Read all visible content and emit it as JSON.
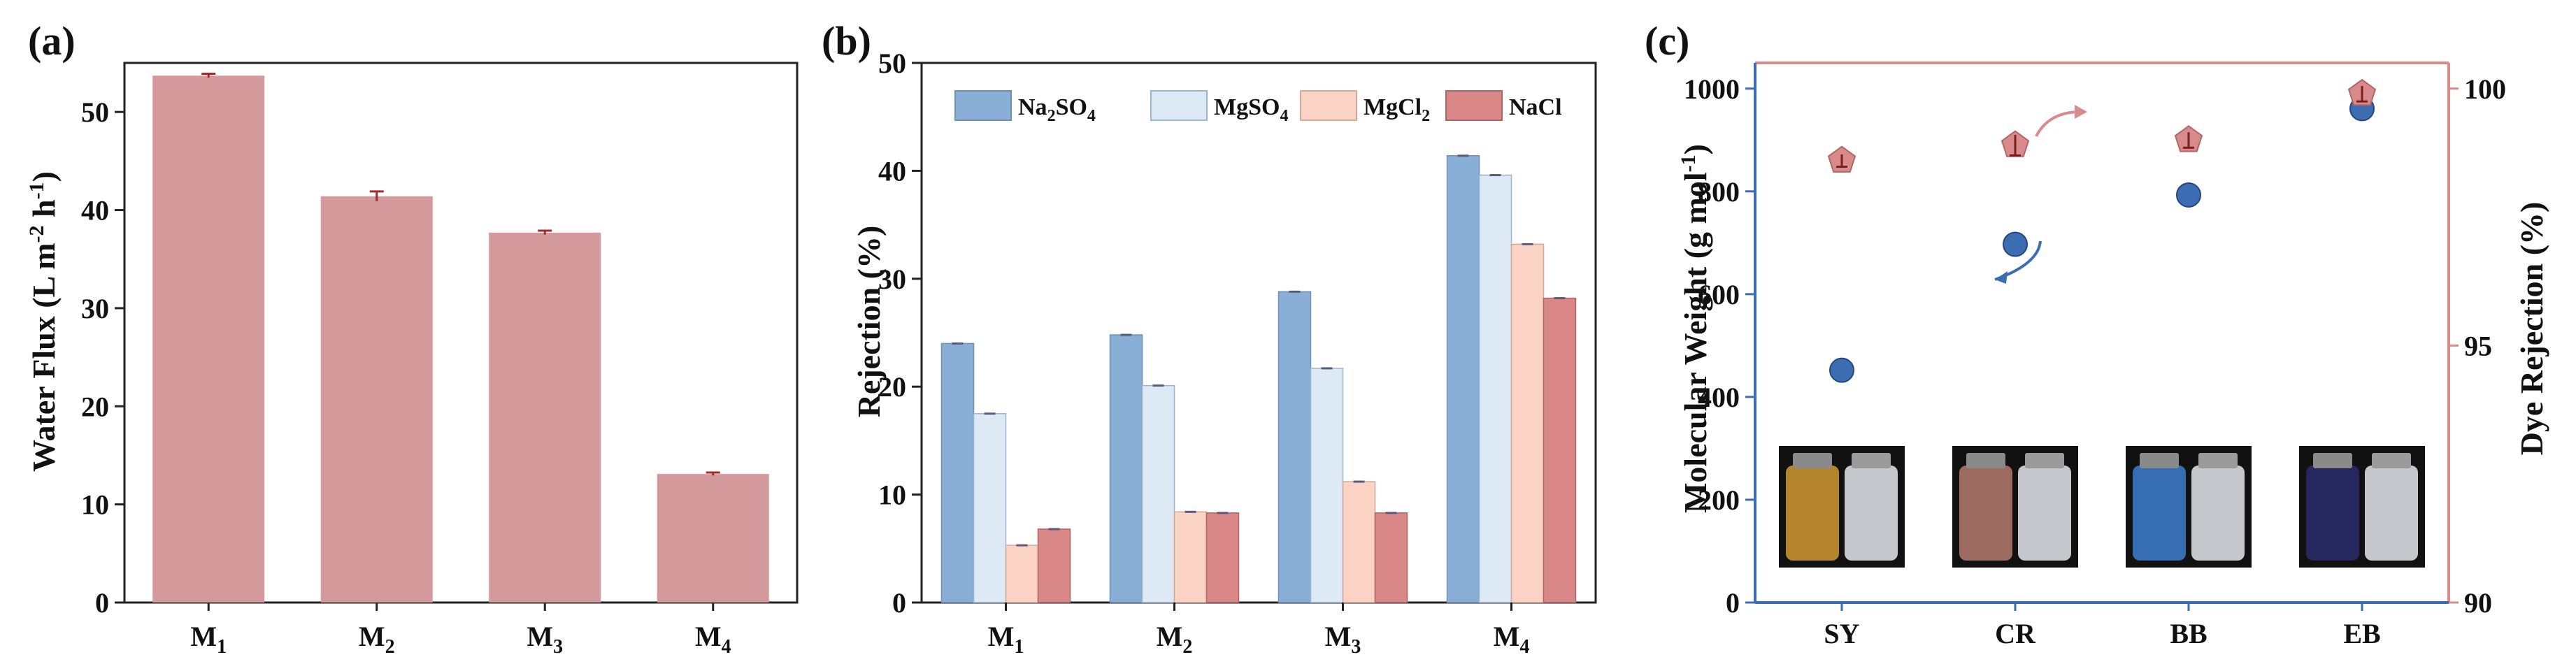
{
  "chart_data": [
    {
      "panel": "(a)",
      "type": "bar",
      "categories": [
        "M1",
        "M2",
        "M3",
        "M4"
      ],
      "values": [
        53.7,
        41.4,
        37.7,
        13.1
      ],
      "errors": [
        0.2,
        0.5,
        0.2,
        0.15
      ],
      "ylabel": "Water Flux (L m-2 h-1)",
      "ylim": [
        0,
        55
      ],
      "yticks": [
        0,
        10,
        20,
        30,
        40,
        50
      ],
      "color": "#d4999a",
      "error_color": "#a42a2a"
    },
    {
      "panel": "(b)",
      "type": "bar",
      "categories": [
        "M1",
        "M2",
        "M3",
        "M4"
      ],
      "series": [
        {
          "name": "Na2SO4",
          "values": [
            24.0,
            24.8,
            28.8,
            41.4
          ],
          "color": "#8aafd6"
        },
        {
          "name": "MgSO4",
          "values": [
            17.5,
            20.1,
            21.7,
            39.6
          ],
          "color": "#dde9f5"
        },
        {
          "name": "MgCl2",
          "values": [
            5.3,
            8.4,
            11.2,
            33.2
          ],
          "color": "#fbd3c4"
        },
        {
          "name": "NaCl",
          "values": [
            6.8,
            8.3,
            8.3,
            28.2
          ],
          "color": "#d98787"
        }
      ],
      "ylabel": "Rejection (%)",
      "ylim": [
        0,
        50
      ],
      "yticks": [
        0,
        10,
        20,
        30,
        40,
        50
      ],
      "legend": "top"
    },
    {
      "panel": "(c)",
      "type": "scatter",
      "categories": [
        "SY",
        "CR",
        "BB",
        "EB"
      ],
      "series": [
        {
          "name": "Molecular Weight",
          "axis": "left",
          "values": [
            452,
            697,
            793,
            961
          ],
          "color": "#3c6db3"
        },
        {
          "name": "Dye Rejection",
          "axis": "right",
          "values": [
            98.6,
            98.9,
            99.0,
            99.9
          ],
          "errors": [
            0.12,
            0.2,
            0.15,
            0.15
          ],
          "color": "#d98a8a"
        }
      ],
      "ylabel_left": "Molecular Weight (g mol-1)",
      "ylabel_right": "Dye Rejection (%)",
      "ylim_left": [
        0,
        1050
      ],
      "yticks_left": [
        0,
        200,
        400,
        600,
        800,
        1000
      ],
      "ylim_right": [
        90,
        100.5
      ],
      "yticks_right": [
        90,
        95,
        100
      ],
      "vial_colors": [
        "#d19a32",
        "#b77b6e",
        "#3d7ed0",
        "#2c2c6e"
      ]
    }
  ],
  "labels": {
    "a": {
      "panel": "(a)",
      "ylabel_main": "Water Flux (L m",
      "ylabel_sup1": "-2",
      "ylabel_mid": " h",
      "ylabel_sup2": "-1",
      "ylabel_end": ")"
    },
    "b": {
      "panel": "(b)",
      "ylabel": "Rejection (%)"
    },
    "c": {
      "panel": "(c)",
      "ylabel_left_main": "Molecular Weight (g mol",
      "ylabel_left_sup": "-1",
      "ylabel_left_end": ")",
      "ylabel_right": "Dye Rejection (%)"
    },
    "legend": {
      "na": "Na",
      "na_sub": "2",
      "na_end": "SO",
      "na_sub2": "4",
      "mg": "MgSO",
      "mg_sub": "4",
      "mgcl": "MgCl",
      "mgcl_sub": "2",
      "nacl": "NaCl"
    },
    "m_prefix": "M",
    "m_subs": [
      "1",
      "2",
      "3",
      "4"
    ]
  }
}
